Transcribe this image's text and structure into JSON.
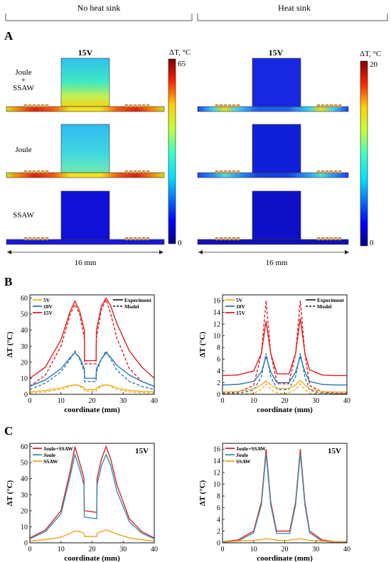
{
  "headers": {
    "left": "No heat sink",
    "right": "Heat sink"
  },
  "panels": {
    "A": "A",
    "B": "B",
    "C": "C"
  },
  "panel_a": {
    "voltage": "15V",
    "row_labels": [
      "Joule\n+\nSSAW",
      "Joule",
      "SSAW"
    ],
    "colorbar_unit": "ΔT, °C",
    "left_colorbar": {
      "max": "65",
      "min": "0"
    },
    "right_colorbar": {
      "max": "20",
      "min": "0"
    },
    "scale": "16 mm",
    "colors": {
      "deep_blue": "#1010d0",
      "cyan": "#30c8f0",
      "yellow": "#e8e820",
      "red": "#d81010",
      "electrode": "#d4a050"
    }
  },
  "chart_data": [
    {
      "id": "B-left",
      "type": "line",
      "xlabel": "coordinate (mm)",
      "ylabel": "ΔT (°C)",
      "xlim": [
        0,
        40
      ],
      "ylim": [
        0,
        62
      ],
      "xticks": [
        0,
        10,
        20,
        30,
        40
      ],
      "yticks": [
        0,
        10,
        20,
        30,
        40,
        50,
        60
      ],
      "legend": [
        "5V",
        "10V",
        "15V"
      ],
      "legend_styles": [
        "Experiment",
        "Model"
      ],
      "series": [
        {
          "name": "15V",
          "color": "#e02020",
          "style": "solid",
          "x": [
            0,
            5,
            10,
            13,
            14.5,
            16,
            17.5,
            17.6,
            21.3,
            21.4,
            23,
            24.5,
            26,
            28,
            32,
            36,
            40
          ],
          "y": [
            10,
            17,
            34,
            52,
            58,
            52,
            40,
            21,
            21,
            40,
            55,
            60,
            55,
            44,
            27,
            17,
            10
          ]
        },
        {
          "name": "15V",
          "color": "#e02020",
          "style": "dashed",
          "x": [
            0,
            5,
            10,
            13,
            14.5,
            16,
            17.5,
            17.6,
            21.3,
            21.4,
            23,
            24.5,
            26,
            28,
            32,
            36,
            40
          ],
          "y": [
            5,
            12,
            30,
            50,
            56,
            50,
            35,
            19,
            19,
            35,
            53,
            59,
            50,
            35,
            16,
            8,
            5
          ]
        },
        {
          "name": "10V",
          "color": "#2878b8",
          "style": "solid",
          "x": [
            0,
            5,
            10,
            13,
            14.5,
            16,
            17.5,
            17.6,
            21.3,
            21.4,
            23,
            24.5,
            26,
            28,
            32,
            36,
            40
          ],
          "y": [
            5,
            9,
            16,
            23,
            26,
            23,
            16,
            10,
            10,
            16,
            22,
            26,
            23,
            18,
            12,
            8,
            5
          ]
        },
        {
          "name": "10V",
          "color": "#2878b8",
          "style": "dashed",
          "x": [
            0,
            5,
            10,
            13,
            14.5,
            16,
            17.5,
            17.6,
            21.3,
            21.4,
            23,
            24.5,
            26,
            28,
            32,
            36,
            40
          ],
          "y": [
            3,
            7,
            14,
            22,
            27,
            22,
            14,
            8,
            8,
            14,
            22,
            27,
            22,
            15,
            8,
            5,
            3
          ]
        },
        {
          "name": "5V",
          "color": "#f0b020",
          "style": "solid",
          "x": [
            0,
            5,
            10,
            13,
            14.5,
            16,
            17.5,
            17.6,
            21.3,
            21.4,
            23,
            24.5,
            26,
            28,
            32,
            36,
            40
          ],
          "y": [
            1.5,
            2.5,
            4,
            5.5,
            6,
            5.5,
            4,
            3,
            3,
            4,
            5.5,
            6,
            5.5,
            4,
            2.5,
            1.8,
            1.5
          ]
        },
        {
          "name": "5V",
          "color": "#f0b020",
          "style": "dashed",
          "x": [
            0,
            5,
            10,
            13,
            14.5,
            16,
            17.5,
            17.6,
            21.3,
            21.4,
            23,
            24.5,
            26,
            28,
            32,
            36,
            40
          ],
          "y": [
            0.8,
            1.5,
            3,
            5,
            6,
            5,
            3,
            2,
            2,
            3,
            5,
            6,
            5,
            3,
            1.5,
            1,
            0.8
          ]
        }
      ]
    },
    {
      "id": "B-right",
      "type": "line",
      "xlabel": "coordinate (mm)",
      "ylabel": "ΔT (°C)",
      "xlim": [
        0,
        40
      ],
      "ylim": [
        0,
        17
      ],
      "xticks": [
        0,
        10,
        20,
        30,
        40
      ],
      "yticks": [
        0,
        2,
        4,
        6,
        8,
        10,
        12,
        14,
        16
      ],
      "legend": [
        "5V",
        "10V",
        "15V"
      ],
      "legend_styles": [
        "Experiment",
        "Model"
      ],
      "series": [
        {
          "name": "15V",
          "color": "#e02020",
          "style": "solid",
          "x": [
            0,
            5,
            10,
            12.5,
            14,
            15.5,
            17.5,
            17.6,
            21.3,
            21.4,
            23.5,
            25,
            26.5,
            28,
            32,
            36,
            40
          ],
          "y": [
            3.2,
            3.3,
            4,
            7,
            12.5,
            7,
            3.5,
            3.5,
            3.5,
            3.5,
            7,
            13,
            7,
            4.2,
            3.3,
            3.2,
            3.2
          ]
        },
        {
          "name": "15V",
          "color": "#e02020",
          "style": "dashed",
          "x": [
            0,
            5,
            10,
            12.5,
            14,
            15.5,
            17.5,
            17.6,
            21.3,
            21.4,
            23.5,
            25,
            26.5,
            28,
            32,
            36,
            40
          ],
          "y": [
            0.2,
            0.4,
            1.5,
            7,
            16,
            7,
            2,
            1.8,
            1.8,
            2,
            7,
            16,
            7,
            1.5,
            0.4,
            0.2,
            0.2
          ]
        },
        {
          "name": "10V",
          "color": "#2878b8",
          "style": "solid",
          "x": [
            0,
            5,
            10,
            12.5,
            14,
            15.5,
            17.5,
            17.6,
            21.3,
            21.4,
            23.5,
            25,
            26.5,
            28,
            32,
            36,
            40
          ],
          "y": [
            1.6,
            1.7,
            2.2,
            3.8,
            6.5,
            3.8,
            2,
            2,
            2,
            2,
            3.8,
            6.5,
            3.8,
            2.2,
            1.7,
            1.6,
            1.6
          ]
        },
        {
          "name": "10V",
          "color": "#2878b8",
          "style": "dashed",
          "x": [
            0,
            5,
            10,
            12.5,
            14,
            15.5,
            17.5,
            17.6,
            21.3,
            21.4,
            23.5,
            25,
            26.5,
            28,
            32,
            36,
            40
          ],
          "y": [
            0.1,
            0.2,
            0.7,
            3,
            7,
            3,
            1,
            0.8,
            0.8,
            1,
            3,
            7,
            3,
            0.7,
            0.2,
            0.1,
            0.1
          ]
        },
        {
          "name": "5V",
          "color": "#f0b020",
          "style": "solid",
          "x": [
            0,
            5,
            10,
            12.5,
            14,
            15.5,
            17.5,
            17.6,
            21.3,
            21.4,
            23.5,
            25,
            26.5,
            28,
            32,
            36,
            40
          ],
          "y": [
            0.4,
            0.5,
            0.9,
            1.6,
            2.3,
            1.6,
            1,
            1,
            1,
            1,
            1.6,
            2.4,
            1.6,
            0.9,
            0.5,
            0.4,
            0.4
          ]
        },
        {
          "name": "5V",
          "color": "#f0b020",
          "style": "dashed",
          "x": [
            0,
            5,
            10,
            12.5,
            14,
            15.5,
            17.5,
            17.6,
            21.3,
            21.4,
            23.5,
            25,
            26.5,
            28,
            32,
            36,
            40
          ],
          "y": [
            0,
            0.05,
            0.2,
            0.8,
            1.8,
            0.8,
            0.3,
            0.2,
            0.2,
            0.3,
            0.8,
            1.8,
            0.8,
            0.2,
            0.05,
            0,
            0
          ]
        }
      ]
    },
    {
      "id": "C-left",
      "type": "line",
      "annotation": "15V",
      "xlabel": "coordinate (mm)",
      "ylabel": "ΔT (°C)",
      "xlim": [
        0,
        40
      ],
      "ylim": [
        0,
        62
      ],
      "xticks": [
        0,
        10,
        20,
        30,
        40
      ],
      "yticks": [
        0,
        10,
        20,
        30,
        40,
        50,
        60
      ],
      "legend": [
        "Joule+SSAW",
        "Joule",
        "SSAW"
      ],
      "series": [
        {
          "name": "Joule+SSAW",
          "color": "#e02020",
          "style": "solid",
          "x": [
            0,
            5,
            10,
            13,
            14.5,
            16,
            17.4,
            17.5,
            21.5,
            21.6,
            23,
            24.5,
            26,
            28,
            32,
            36,
            40
          ],
          "y": [
            3,
            8,
            20,
            45,
            60,
            50,
            40,
            20,
            19,
            40,
            52,
            60,
            52,
            36,
            15,
            7,
            3
          ]
        },
        {
          "name": "Joule",
          "color": "#3890b0",
          "style": "solid",
          "x": [
            0,
            5,
            10,
            13,
            14.5,
            16,
            17.4,
            17.5,
            21.5,
            21.6,
            23,
            24.5,
            26,
            28,
            32,
            36,
            40
          ],
          "y": [
            2.5,
            7,
            18,
            42,
            55,
            46,
            36,
            16,
            15,
            36,
            48,
            55,
            48,
            32,
            13,
            6,
            2.5
          ]
        },
        {
          "name": "SSAW",
          "color": "#f0a020",
          "style": "solid",
          "x": [
            0,
            5,
            10,
            13,
            14.5,
            16,
            17.4,
            17.5,
            21.5,
            21.6,
            23,
            24.5,
            26,
            28,
            32,
            36,
            40
          ],
          "y": [
            1,
            2,
            3.5,
            6,
            7.5,
            7,
            6,
            4,
            4,
            6,
            7,
            8,
            7,
            5.5,
            3,
            2,
            1
          ]
        }
      ]
    },
    {
      "id": "C-right",
      "type": "line",
      "annotation": "15V",
      "xlabel": "coordinate (mm)",
      "ylabel": "ΔT (°C)",
      "xlim": [
        0,
        40
      ],
      "ylim": [
        0,
        17
      ],
      "xticks": [
        0,
        10,
        20,
        30,
        40
      ],
      "yticks": [
        0,
        2,
        4,
        6,
        8,
        10,
        12,
        14,
        16
      ],
      "legend": [
        "Joule+SSAW",
        "Joule",
        "SSAW"
      ],
      "series": [
        {
          "name": "Joule+SSAW",
          "color": "#e02020",
          "style": "solid",
          "x": [
            0,
            5,
            10,
            12.5,
            14,
            15.5,
            17.4,
            17.5,
            21.5,
            21.6,
            23.5,
            25,
            26.5,
            28,
            32,
            36,
            40
          ],
          "y": [
            0.2,
            0.5,
            2,
            7,
            16,
            7,
            2,
            2,
            2,
            2,
            7,
            16,
            7,
            2,
            0.5,
            0.2,
            0.2
          ]
        },
        {
          "name": "Joule",
          "color": "#3890b0",
          "style": "solid",
          "x": [
            0,
            5,
            10,
            12.5,
            14,
            15.5,
            17.4,
            17.5,
            21.5,
            21.6,
            23.5,
            25,
            26.5,
            28,
            32,
            36,
            40
          ],
          "y": [
            0.1,
            0.3,
            1.7,
            6.5,
            15.3,
            6.5,
            1.6,
            1.6,
            1.6,
            1.6,
            6.5,
            15.3,
            6.5,
            1.7,
            0.3,
            0.1,
            0.1
          ]
        },
        {
          "name": "SSAW",
          "color": "#f0a020",
          "style": "solid",
          "x": [
            0,
            5,
            10,
            12.5,
            14,
            15.5,
            17.4,
            17.5,
            21.5,
            21.6,
            23.5,
            25,
            26.5,
            28,
            32,
            36,
            40
          ],
          "y": [
            0.2,
            0.3,
            0.4,
            0.55,
            0.7,
            0.6,
            0.5,
            0.4,
            0.4,
            0.5,
            0.6,
            0.7,
            0.55,
            0.4,
            0.3,
            0.2,
            0.2
          ]
        }
      ]
    }
  ]
}
